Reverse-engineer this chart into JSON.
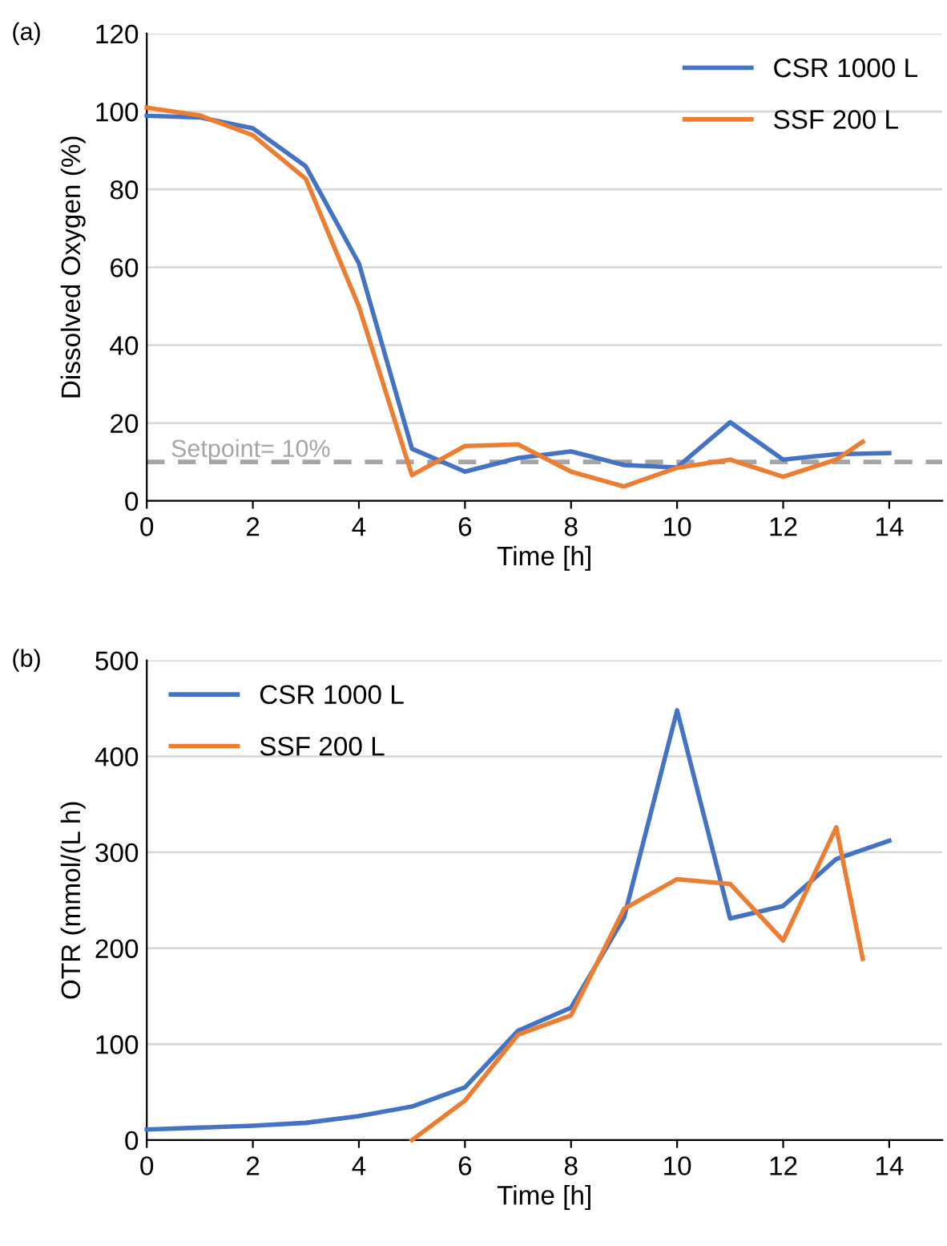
{
  "chart_data": [
    {
      "type": "line",
      "xlabel": "Time [h]",
      "ylabel": "Dissolved Oxygen (%)",
      "annotations": [
        "(a)"
      ],
      "xlim": [
        0,
        15
      ],
      "xticks": [
        0,
        2,
        4,
        6,
        8,
        10,
        12,
        14
      ],
      "ylim": [
        0,
        120
      ],
      "yticks": [
        0,
        20,
        40,
        60,
        80,
        100,
        120
      ],
      "grid": "y",
      "legend": "top right",
      "marker": "none",
      "line_style": "solid",
      "ref_lines": [
        {
          "axis": "y",
          "value": 10,
          "label": "Setpoint= 10%",
          "color": "#a5a5a5",
          "line_style": "dashed"
        }
      ],
      "series": [
        {
          "name": "CSR 1000 L",
          "color": "#4472c4",
          "x": [
            0,
            1,
            2,
            3,
            4,
            5,
            6,
            7,
            8,
            9,
            10,
            11,
            12,
            13,
            14
          ],
          "values": [
            98.9,
            98.5,
            95.7,
            85.9,
            61,
            13.4,
            7.5,
            11,
            12.7,
            9.2,
            8.6,
            20.2,
            10.6,
            12,
            12.3
          ]
        },
        {
          "name": "SSF 200 L",
          "color": "#ed7d31",
          "x": [
            0,
            1,
            2,
            3,
            4,
            5,
            6,
            7,
            8,
            9,
            10,
            11,
            12,
            13,
            13.5
          ],
          "values": [
            101,
            99,
            93.9,
            82.7,
            49.9,
            6.6,
            14.1,
            14.5,
            7.5,
            3.7,
            8.5,
            10.6,
            6.2,
            10.6,
            15.2
          ]
        }
      ]
    },
    {
      "type": "line",
      "xlabel": "Time [h]",
      "ylabel": "OTR (mmol/(L h)",
      "annotations": [
        "(b)"
      ],
      "xlim": [
        0,
        15
      ],
      "xticks": [
        0,
        2,
        4,
        6,
        8,
        10,
        12,
        14
      ],
      "ylim": [
        0,
        500
      ],
      "yticks": [
        0,
        100,
        200,
        300,
        400,
        500
      ],
      "grid": "y",
      "legend": "top left",
      "marker": "none",
      "line_style": "solid",
      "series": [
        {
          "name": "CSR 1000 L",
          "color": "#4472c4",
          "x": [
            0,
            1,
            2,
            3,
            4,
            5,
            6,
            7,
            8,
            9,
            10,
            11,
            12,
            13,
            14
          ],
          "values": [
            11,
            13,
            15,
            18,
            25,
            35,
            55,
            114,
            138,
            232,
            448,
            231,
            244,
            293,
            312
          ]
        },
        {
          "name": "SSF 200 L",
          "color": "#ed7d31",
          "x": [
            5,
            6,
            7,
            8,
            9,
            10,
            11,
            12,
            13,
            13.5
          ],
          "values": [
            0,
            41,
            110,
            130,
            241,
            272,
            267,
            208,
            326,
            189
          ]
        }
      ]
    }
  ]
}
